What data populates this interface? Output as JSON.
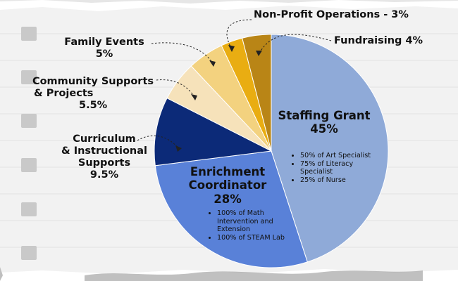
{
  "chart_data": {
    "type": "pie",
    "slices": [
      {
        "label": "Staffing Grant",
        "value": 45,
        "value_label": "45%",
        "color": "#8faad8",
        "bullets": [
          "50% of Art Specialist",
          "75% of Literacy Specialist",
          "25% of Nurse"
        ]
      },
      {
        "label": "Enrichment Coordinator",
        "value": 28,
        "value_label": "28%",
        "color": "#5981d8",
        "bullets": [
          "100% of Math Intervention and Extension",
          "100% of STEAM Lab"
        ]
      },
      {
        "label": "Curriculum & Instructional Supports",
        "value": 9.5,
        "value_label": "9.5%",
        "color": "#0c2a78"
      },
      {
        "label": "Community Supports & Projects",
        "value": 5.5,
        "value_label": "5.5%",
        "color": "#f6e2ba"
      },
      {
        "label": "Family Events",
        "value": 5,
        "value_label": "5%",
        "color": "#f3d27f"
      },
      {
        "label": "Non-Profit Operations - 3%",
        "value": 3,
        "color": "#e9ad12"
      },
      {
        "label": "Fundraising 4%",
        "value": 4,
        "color": "#b98516"
      }
    ]
  },
  "labels": {
    "staffing_line1": "Staffing Grant",
    "staffing_pct": "45%",
    "enrichment_line1": "Enrichment",
    "enrichment_line2": "Coordinator",
    "enrichment_pct": "28%",
    "curriculum_line1": "Curriculum",
    "curriculum_line2": "& Instructional",
    "curriculum_line3": "Supports",
    "curriculum_pct": "9.5%",
    "community_line1": "Community Supports",
    "community_line2": "& Projects",
    "community_pct": "5.5%",
    "family_line1": "Family Events",
    "family_pct": "5%",
    "nonprofit": "Non-Profit Operations - 3%",
    "fundraising": "Fundraising 4%"
  },
  "bullets": {
    "staffing": [
      "50% of Art Specialist",
      "75% of Literacy Specialist",
      "25% of Nurse"
    ],
    "enrichment": [
      "100% of Math Intervention and Extension",
      "100% of STEAM Lab"
    ]
  }
}
